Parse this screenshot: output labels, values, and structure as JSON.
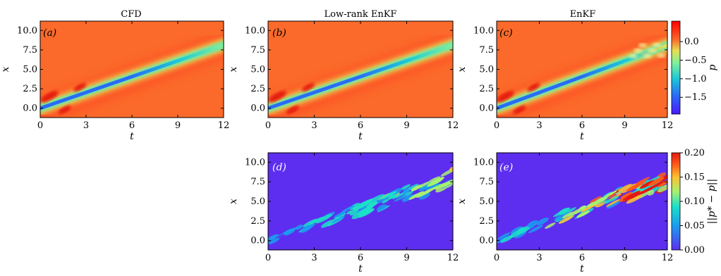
{
  "colors": {
    "background_field": "#fb6a2a",
    "error_background": "#5d2ef0"
  },
  "colorbars": {
    "pressure": {
      "label": "p",
      "ticks": [
        "0.0",
        "−0.5",
        "−1.0",
        "−1.5"
      ],
      "tick_values": [
        0.0,
        -0.5,
        -1.0,
        -1.5
      ],
      "range": [
        -1.95,
        0.55
      ]
    },
    "error": {
      "label": "||p* − p||",
      "ticks": [
        "0.20",
        "0.15",
        "0.10",
        "0.05",
        "0.00"
      ],
      "tick_values": [
        0.2,
        0.15,
        0.1,
        0.05,
        0.0
      ],
      "range": [
        0.0,
        0.2
      ]
    }
  },
  "chart_data": [
    {
      "type": "heatmap",
      "panel": "a",
      "panel_label": "(a)",
      "title": "CFD",
      "xlabel": "t",
      "ylabel": "x",
      "xlim": [
        0,
        12
      ],
      "ylim": [
        -1.2,
        11.2
      ],
      "x_ticks": [
        "0",
        "3",
        "6",
        "9",
        "12"
      ],
      "y_ticks": [
        "0.0",
        "2.5",
        "5.0",
        "7.5",
        "10.0"
      ],
      "value": "p",
      "ridge": {
        "t": [
          0,
          12
        ],
        "x": [
          0,
          7.9
        ]
      },
      "min_p_along_ridge": {
        "t": [
          0,
          3,
          6,
          9,
          12
        ],
        "p": [
          -1.7,
          -1.6,
          -1.45,
          -1.2,
          -0.7
        ]
      }
    },
    {
      "type": "heatmap",
      "panel": "b",
      "panel_label": "(b)",
      "title": "Low-rank EnKF",
      "xlabel": "t",
      "ylabel": "x",
      "xlim": [
        0,
        12
      ],
      "ylim": [
        -1.2,
        11.2
      ],
      "x_ticks": [
        "0",
        "3",
        "6",
        "9",
        "12"
      ],
      "y_ticks": [
        "0.0",
        "2.5",
        "5.0",
        "7.5",
        "10.0"
      ],
      "value": "p",
      "ridge": {
        "t": [
          0,
          12
        ],
        "x": [
          0,
          7.9
        ]
      },
      "min_p_along_ridge": {
        "t": [
          0,
          3,
          6,
          9,
          12
        ],
        "p": [
          -1.7,
          -1.6,
          -1.45,
          -1.2,
          -0.7
        ]
      }
    },
    {
      "type": "heatmap",
      "panel": "c",
      "panel_label": "(c)",
      "title": "EnKF",
      "xlabel": "t",
      "ylabel": "x",
      "xlim": [
        0,
        12
      ],
      "ylim": [
        -1.2,
        11.2
      ],
      "x_ticks": [
        "0",
        "3",
        "6",
        "9",
        "12"
      ],
      "y_ticks": [
        "0.0",
        "2.5",
        "5.0",
        "7.5",
        "10.0"
      ],
      "value": "p",
      "ridge": {
        "t": [
          0,
          12
        ],
        "x": [
          0,
          7.9
        ]
      },
      "min_p_along_ridge": {
        "t": [
          0,
          3,
          6,
          9,
          12
        ],
        "p": [
          -1.7,
          -1.6,
          -1.45,
          -1.1,
          -0.3
        ]
      }
    },
    {
      "type": "heatmap",
      "panel": "d",
      "panel_label": "(d)",
      "title": "",
      "xlabel": "t",
      "ylabel": "x",
      "xlim": [
        0,
        12
      ],
      "ylim": [
        -1.2,
        11.2
      ],
      "x_ticks": [
        "0",
        "3",
        "6",
        "9",
        "12"
      ],
      "y_ticks": [
        "0.0",
        "2.5",
        "5.0",
        "7.5",
        "10.0"
      ],
      "value": "||p* − p||",
      "ridge": {
        "t": [
          0,
          12
        ],
        "x": [
          0,
          7.9
        ]
      },
      "max_error_along_ridge": {
        "t": [
          0,
          3,
          6,
          9,
          12
        ],
        "e": [
          0.06,
          0.08,
          0.1,
          0.12,
          0.13
        ]
      }
    },
    {
      "type": "heatmap",
      "panel": "e",
      "panel_label": "(e)",
      "title": "",
      "xlabel": "t",
      "ylabel": "x",
      "xlim": [
        0,
        12
      ],
      "ylim": [
        -1.2,
        11.2
      ],
      "x_ticks": [
        "0",
        "3",
        "6",
        "9",
        "12"
      ],
      "y_ticks": [
        "0.0",
        "2.5",
        "5.0",
        "7.5",
        "10.0"
      ],
      "value": "||p* − p||",
      "ridge": {
        "t": [
          0,
          12
        ],
        "x": [
          0,
          7.9
        ]
      },
      "max_error_along_ridge": {
        "t": [
          0,
          3,
          6,
          9,
          12
        ],
        "e": [
          0.07,
          0.1,
          0.14,
          0.19,
          0.2
        ]
      }
    }
  ]
}
